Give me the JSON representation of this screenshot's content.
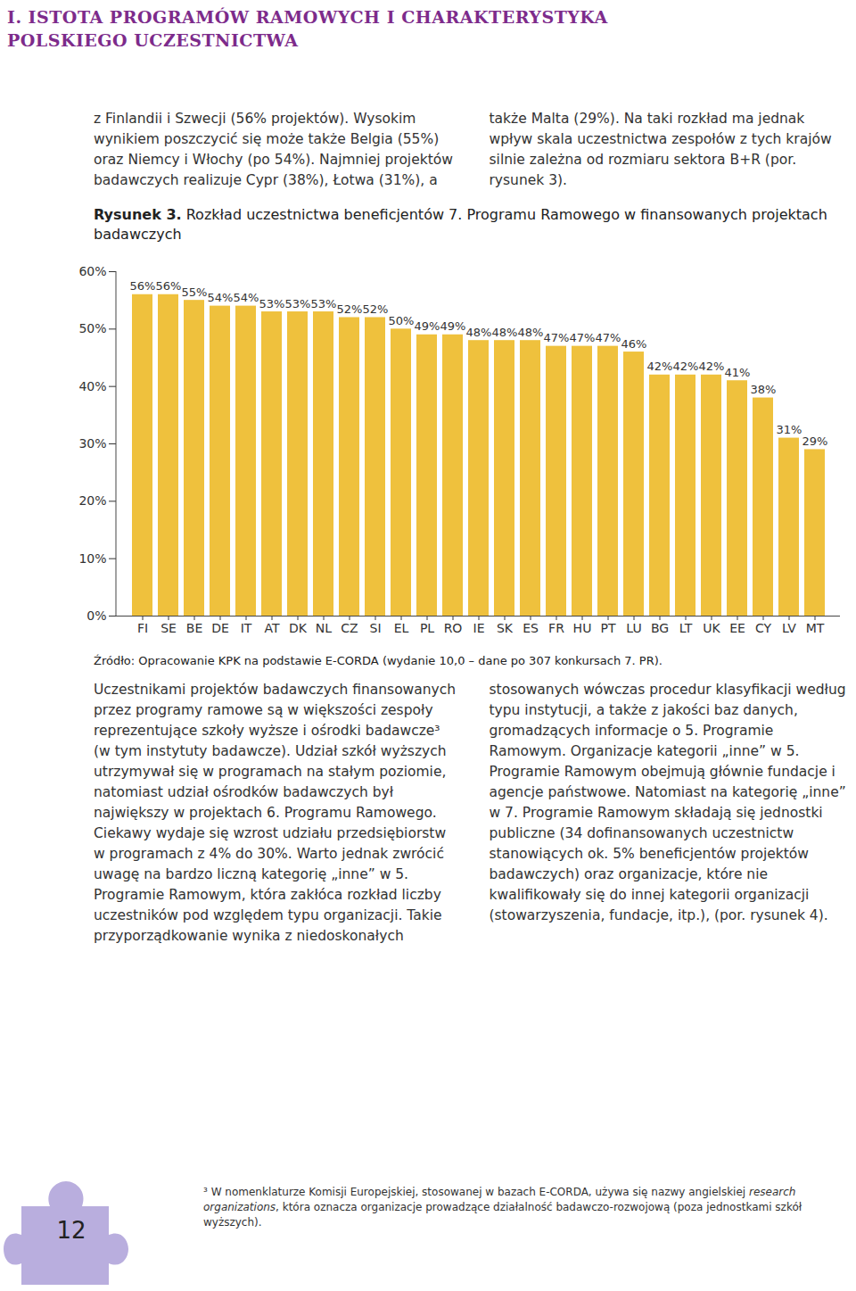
{
  "chart_data": {
    "type": "bar",
    "title": [
      "Rysunek 3.",
      "Rozkład uczestnictwa beneficjentów 7. Programu Ramowego w finansowanych projektach badawczych"
    ],
    "source": "Źródło: Opracowanie KPK na podstawie E-CORDA (wydanie 10,0 – dane po 307 konkursach 7. PR).",
    "categories": [
      "FI",
      "SE",
      "BE",
      "DE",
      "IT",
      "AT",
      "DK",
      "NL",
      "CZ",
      "SI",
      "EL",
      "PL",
      "RO",
      "IE",
      "SK",
      "ES",
      "FR",
      "HU",
      "PT",
      "LU",
      "BG",
      "LT",
      "UK",
      "EE",
      "CY",
      "LV",
      "MT"
    ],
    "values": [
      56,
      56,
      55,
      54,
      54,
      53,
      53,
      53,
      52,
      52,
      50,
      49,
      49,
      48,
      48,
      48,
      47,
      47,
      47,
      46,
      42,
      42,
      42,
      41,
      38,
      31,
      29
    ],
    "value_labels": [
      "56%",
      "56%",
      "55%",
      "54%",
      "54%",
      "53%",
      "53%",
      "53%",
      "52%",
      "52%",
      "50%",
      "49%",
      "49%",
      "48%",
      "48%",
      "48%",
      "47%",
      "47%",
      "47%",
      "46%",
      "42%",
      "42%",
      "42%",
      "41%",
      "38%",
      "31%",
      "29%"
    ],
    "color": "#efc13d",
    "ylim": [
      0,
      60
    ],
    "yticks": [
      {
        "value": 0,
        "label": "0%"
      },
      {
        "value": 10,
        "label": "10%"
      },
      {
        "value": 20,
        "label": "20%"
      },
      {
        "value": 30,
        "label": "30%"
      },
      {
        "value": 40,
        "label": "40%"
      },
      {
        "value": 50,
        "label": "50%"
      },
      {
        "value": 60,
        "label": "60%"
      }
    ],
    "grid": false,
    "data_labels": true
  },
  "page": {
    "header": [
      "I. ISTOTA PROGRAMÓW RAMOWYCH I CHARAKTERYSTYKA",
      "POLSKIEGO UCZESTNICTWA"
    ],
    "text_above": "z Finlandii i Szwecji (56% projektów). Wysokim wynikiem poszczycić się może także Belgia (55%) oraz Niemcy i Włochy (po 54%). Najmniej projektów badawczych realizuje Cypr (38%), Łotwa (31%), a także Malta (29%). Na taki rozkład ma jednak wpływ skala uczestnictwa zespołów z tych krajów silnie zależna od rozmiaru sektora B+R (por. rysunek 3).",
    "text_below": "Uczestnikami projektów badawczych finansowanych przez programy ramowe są w większości zespoły reprezentujące szkoły wyższe i ośrodki badawcze³ (w tym instytuty badawcze). Udział szkół wyższych utrzymywał się w programach na stałym poziomie, natomiast udział ośrodków badawczych był największy w projektach 6. Programu Ramowego. Ciekawy wydaje się wzrost udziału przedsiębiorstw w programach z 4% do 30%. Warto jednak zwrócić uwagę na bardzo liczną kategorię „inne” w 5. Programie Ramowym, która zakłóca rozkład liczby uczestników pod względem typu organizacji. Takie przyporządkowanie wynika z niedoskonałych stosowanych wówczas procedur klasyfikacji według typu instytucji, a także z jakości baz danych, gromadzących informacje o 5. Programie Ramowym. Organizacje kategorii „inne” w 5. Programie Ramowym obejmują głównie fundacje i agencje państwowe. Natomiast na kategorię „inne” w 7. Programie Ramowym składają się jednostki publiczne (34 dofinansowanych uczestnictw stanowiących ok. 5% beneficjentów projektów badawczych) oraz organizacje, które nie kwalifikowały się do innej kategorii organizacji (stowarzyszenia, fundacje, itp.), (por. rysunek 4).",
    "footnote": [
      "³ W nomenklaturze Komisji Europejskiej, stosowanej w bazach E-CORDA, używa się nazwy angielskiej ",
      "research organizations",
      ", która oznacza organizacje prowadzące działalność badawczo-rozwojową (poza jednostkami szkół wyższych)."
    ],
    "page_number": "12"
  }
}
